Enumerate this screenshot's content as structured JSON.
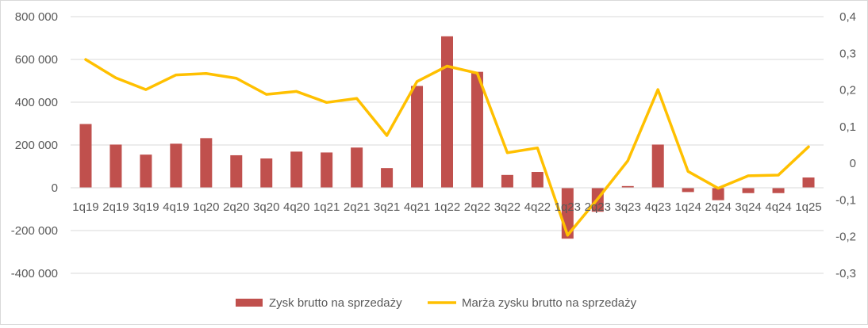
{
  "chart_data": {
    "type": "bar",
    "title": "",
    "categories": [
      "1q19",
      "2q19",
      "3q19",
      "4q19",
      "1q20",
      "2q20",
      "3q20",
      "4q20",
      "1q21",
      "2q21",
      "3q21",
      "4q21",
      "1q22",
      "2q22",
      "3q22",
      "4q22",
      "1q23",
      "2q23",
      "3q23",
      "4q23",
      "1q24",
      "2q24",
      "3q24",
      "4q24",
      "1q25"
    ],
    "series": [
      {
        "name": "Zysk brutto na sprzedaży",
        "type": "bar",
        "axis": "left",
        "color": "#c0504d",
        "values": [
          298000,
          202000,
          155000,
          206000,
          232000,
          152000,
          137000,
          169000,
          165000,
          188000,
          92000,
          476000,
          708000,
          542000,
          60000,
          74000,
          -238000,
          -112000,
          8000,
          202000,
          -20000,
          -58000,
          -25000,
          -25000,
          48000
        ]
      },
      {
        "name": "Marża zysku brutto na sprzedaży",
        "type": "line",
        "axis": "right",
        "color": "#ffc000",
        "values": [
          0.283,
          0.233,
          0.201,
          0.241,
          0.245,
          0.232,
          0.188,
          0.196,
          0.166,
          0.177,
          0.076,
          0.223,
          0.265,
          0.246,
          0.029,
          0.042,
          -0.196,
          -0.097,
          0.007,
          0.201,
          -0.022,
          -0.068,
          -0.034,
          -0.032,
          0.045
        ]
      }
    ],
    "y_left": {
      "range": [
        -400000,
        800000
      ],
      "ticks": [
        -400000,
        -200000,
        0,
        200000,
        400000,
        600000,
        800000
      ],
      "tick_labels": [
        "-400 000",
        "-200 000",
        "0",
        "200 000",
        "400 000",
        "600 000",
        "800 000"
      ]
    },
    "y_right": {
      "range": [
        -0.3,
        0.4
      ],
      "ticks": [
        -0.3,
        -0.2,
        -0.1,
        0,
        0.1,
        0.2,
        0.3,
        0.4
      ],
      "tick_labels": [
        "-0,3",
        "-0,2",
        "-0,1",
        "0",
        "0,1",
        "0,2",
        "0,3",
        "0,4"
      ]
    },
    "grid": true,
    "legend": "bottom"
  }
}
